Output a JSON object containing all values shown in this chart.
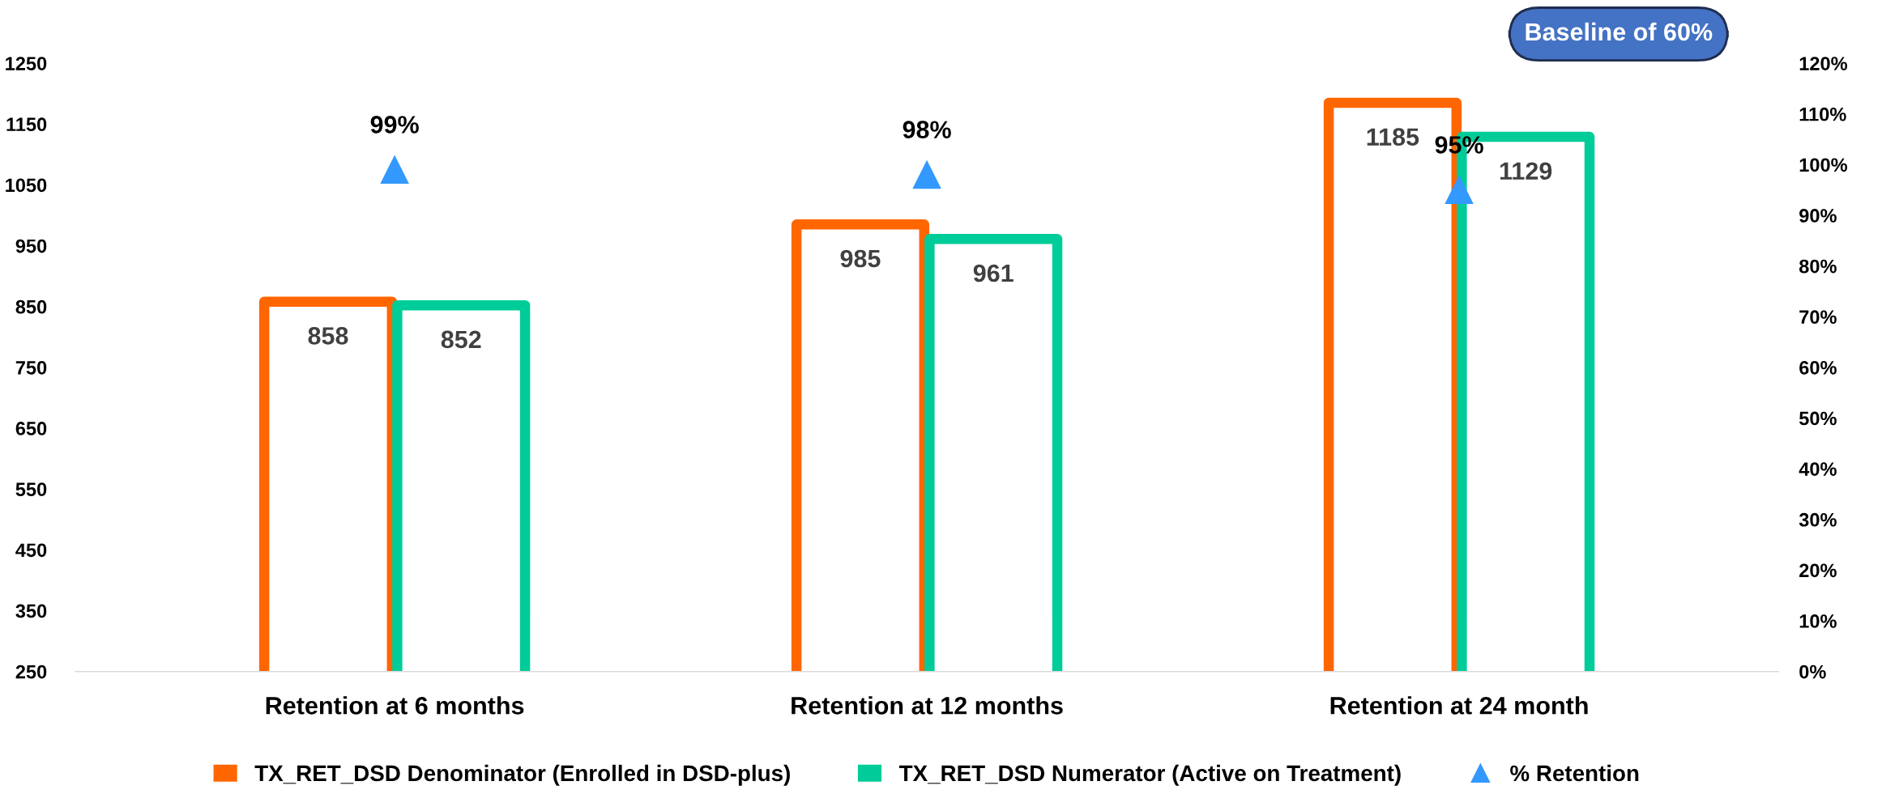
{
  "chart_data": {
    "type": "bar",
    "categories": [
      "Retention at 6 months",
      "Retention at 12 months",
      "Retention at 24 month"
    ],
    "series": [
      {
        "name": "TX_RET_DSD Denominator (Enrolled in DSD-plus)",
        "color": "#ff6600",
        "values": [
          858,
          985,
          1185
        ]
      },
      {
        "name": "TX_RET_DSD Numerator (Active on Treatment)",
        "color": "#00cc99",
        "values": [
          852,
          961,
          1129
        ]
      },
      {
        "name": "% Retention",
        "type": "scatter",
        "axis": "y2",
        "color": "#3399ff",
        "marker": "triangle",
        "values": [
          99,
          98,
          95
        ],
        "value_labels": [
          "99%",
          "98%",
          "95%"
        ]
      }
    ],
    "ylim": [
      250,
      1250
    ],
    "yticks": [
      250,
      350,
      450,
      550,
      650,
      750,
      850,
      950,
      1050,
      1150,
      1250
    ],
    "y2lim": [
      0,
      120
    ],
    "y2ticks": [
      {
        "value": 0,
        "label": "0%"
      },
      {
        "value": 10,
        "label": "10%"
      },
      {
        "value": 20,
        "label": "20%"
      },
      {
        "value": 30,
        "label": "30%"
      },
      {
        "value": 40,
        "label": "40%"
      },
      {
        "value": 50,
        "label": "50%"
      },
      {
        "value": 60,
        "label": "60%"
      },
      {
        "value": 70,
        "label": "70%"
      },
      {
        "value": 80,
        "label": "80%"
      },
      {
        "value": 90,
        "label": "90%"
      },
      {
        "value": 100,
        "label": "100%"
      },
      {
        "value": 110,
        "label": "110%"
      },
      {
        "value": 120,
        "label": "120%"
      }
    ],
    "data_labels": true,
    "grid": false,
    "legend": "bottom",
    "annotations": [
      "Baseline of 60%"
    ]
  }
}
